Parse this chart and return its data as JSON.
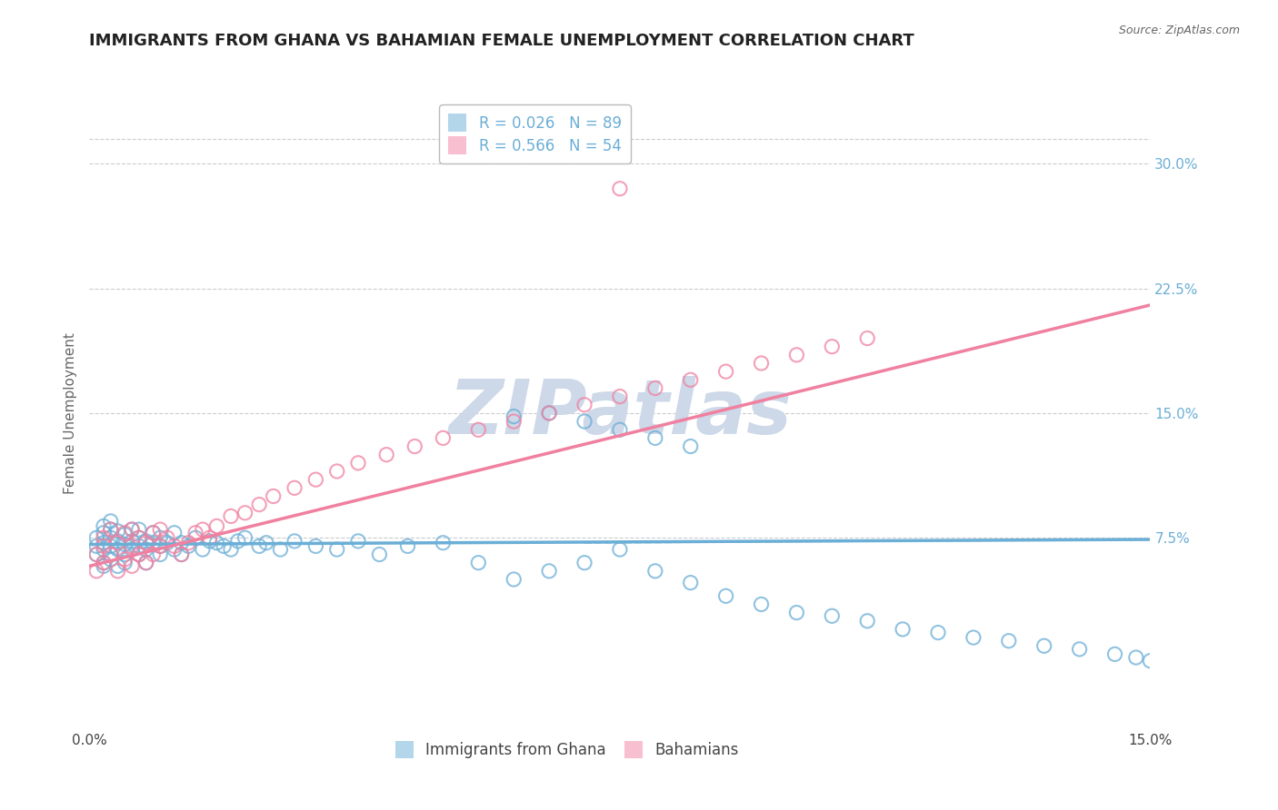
{
  "title": "IMMIGRANTS FROM GHANA VS BAHAMIAN FEMALE UNEMPLOYMENT CORRELATION CHART",
  "source_text": "Source: ZipAtlas.com",
  "ylabel": "Female Unemployment",
  "xlim": [
    0.0,
    0.15
  ],
  "ylim": [
    -0.04,
    0.34
  ],
  "yticks": [
    0.075,
    0.15,
    0.225,
    0.3
  ],
  "yticklabels": [
    "7.5%",
    "15.0%",
    "22.5%",
    "30.0%"
  ],
  "xtick_positions": [
    0.0,
    0.15
  ],
  "xticklabels": [
    "0.0%",
    "15.0%"
  ],
  "legend_line1": "R = 0.026   N = 89",
  "legend_line2": "R = 0.566   N = 54",
  "legend_label1": "Immigrants from Ghana",
  "legend_label2": "Bahamians",
  "blue_color": "#6baed6",
  "pink_color": "#f080a0",
  "trendline_blue": {
    "x": [
      0.0,
      0.15
    ],
    "y": [
      0.071,
      0.074
    ]
  },
  "trendline_pink": {
    "x": [
      0.0,
      0.15
    ],
    "y": [
      0.058,
      0.215
    ]
  },
  "watermark": "ZIPatlas",
  "watermark_color": "#cdd8e8",
  "grid_color": "#cccccc",
  "title_fontsize": 13,
  "axis_label_fontsize": 11,
  "tick_fontsize": 11,
  "legend_fontsize": 12,
  "source_fontsize": 9,
  "scatter_blue_x": [
    0.001,
    0.001,
    0.001,
    0.002,
    0.002,
    0.002,
    0.002,
    0.002,
    0.002,
    0.003,
    0.003,
    0.003,
    0.003,
    0.003,
    0.003,
    0.004,
    0.004,
    0.004,
    0.004,
    0.005,
    0.005,
    0.005,
    0.005,
    0.006,
    0.006,
    0.006,
    0.007,
    0.007,
    0.007,
    0.007,
    0.008,
    0.008,
    0.008,
    0.009,
    0.009,
    0.01,
    0.01,
    0.01,
    0.011,
    0.012,
    0.012,
    0.013,
    0.013,
    0.014,
    0.015,
    0.016,
    0.017,
    0.018,
    0.019,
    0.02,
    0.021,
    0.022,
    0.024,
    0.025,
    0.027,
    0.029,
    0.032,
    0.035,
    0.038,
    0.041,
    0.045,
    0.05,
    0.055,
    0.06,
    0.065,
    0.07,
    0.075,
    0.08,
    0.085,
    0.09,
    0.095,
    0.1,
    0.105,
    0.11,
    0.115,
    0.12,
    0.125,
    0.13,
    0.135,
    0.14,
    0.145,
    0.148,
    0.15,
    0.06,
    0.065,
    0.07,
    0.075,
    0.08,
    0.085
  ],
  "scatter_blue_y": [
    0.065,
    0.07,
    0.075,
    0.06,
    0.068,
    0.072,
    0.078,
    0.058,
    0.082,
    0.065,
    0.07,
    0.075,
    0.08,
    0.062,
    0.085,
    0.068,
    0.073,
    0.058,
    0.079,
    0.065,
    0.071,
    0.077,
    0.06,
    0.068,
    0.073,
    0.08,
    0.065,
    0.07,
    0.075,
    0.08,
    0.068,
    0.073,
    0.06,
    0.072,
    0.078,
    0.065,
    0.07,
    0.075,
    0.072,
    0.068,
    0.078,
    0.072,
    0.065,
    0.07,
    0.075,
    0.068,
    0.073,
    0.072,
    0.07,
    0.068,
    0.073,
    0.075,
    0.07,
    0.072,
    0.068,
    0.073,
    0.07,
    0.068,
    0.073,
    0.065,
    0.07,
    0.072,
    0.06,
    0.05,
    0.055,
    0.06,
    0.068,
    0.055,
    0.048,
    0.04,
    0.035,
    0.03,
    0.028,
    0.025,
    0.02,
    0.018,
    0.015,
    0.013,
    0.01,
    0.008,
    0.005,
    0.003,
    0.001,
    0.148,
    0.15,
    0.145,
    0.14,
    0.135,
    0.13
  ],
  "scatter_pink_x": [
    0.001,
    0.001,
    0.002,
    0.002,
    0.002,
    0.003,
    0.003,
    0.004,
    0.004,
    0.005,
    0.005,
    0.006,
    0.006,
    0.006,
    0.007,
    0.007,
    0.008,
    0.008,
    0.009,
    0.009,
    0.01,
    0.01,
    0.011,
    0.012,
    0.013,
    0.014,
    0.015,
    0.016,
    0.017,
    0.018,
    0.02,
    0.022,
    0.024,
    0.026,
    0.029,
    0.032,
    0.035,
    0.038,
    0.042,
    0.046,
    0.05,
    0.055,
    0.06,
    0.065,
    0.07,
    0.075,
    0.08,
    0.085,
    0.09,
    0.095,
    0.1,
    0.105,
    0.11,
    0.075
  ],
  "scatter_pink_y": [
    0.065,
    0.055,
    0.07,
    0.075,
    0.06,
    0.08,
    0.065,
    0.072,
    0.055,
    0.078,
    0.062,
    0.07,
    0.058,
    0.08,
    0.075,
    0.065,
    0.072,
    0.06,
    0.078,
    0.065,
    0.07,
    0.08,
    0.075,
    0.07,
    0.065,
    0.072,
    0.078,
    0.08,
    0.075,
    0.082,
    0.088,
    0.09,
    0.095,
    0.1,
    0.105,
    0.11,
    0.115,
    0.12,
    0.125,
    0.13,
    0.135,
    0.14,
    0.145,
    0.15,
    0.155,
    0.16,
    0.165,
    0.17,
    0.175,
    0.18,
    0.185,
    0.19,
    0.195,
    0.285
  ]
}
